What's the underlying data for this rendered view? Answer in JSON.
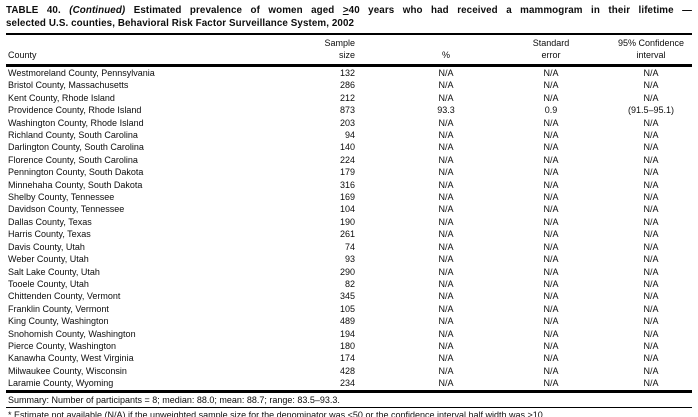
{
  "title": {
    "prefix": "TABLE 40.",
    "continued": "(Continued)",
    "before_geq": "Estimated prevalence of women aged",
    "geq": ">",
    "after_geq": "40 years who had received a mammogram in their lifetime —",
    "line2": "selected U.S. counties, Behavioral Risk Factor Surveillance System, 2002"
  },
  "table": {
    "headers": {
      "county": "County",
      "sample_size": [
        "Sample",
        "size"
      ],
      "percent": "%",
      "standard_error": [
        "Standard",
        "error"
      ],
      "confidence_interval": [
        "95% Confidence",
        "interval"
      ]
    },
    "rows": [
      {
        "county": "Westmoreland County, Pennsylvania",
        "sample": "132",
        "pct": "N/A",
        "se": "N/A",
        "ci": "N/A"
      },
      {
        "county": "Bristol County, Massachusetts",
        "sample": "286",
        "pct": "N/A",
        "se": "N/A",
        "ci": "N/A"
      },
      {
        "county": "Kent County, Rhode Island",
        "sample": "212",
        "pct": "N/A",
        "se": "N/A",
        "ci": "N/A"
      },
      {
        "county": "Providence County, Rhode Island",
        "sample": "873",
        "pct": "93.3",
        "se": "0.9",
        "ci": "(91.5–95.1)"
      },
      {
        "county": "Washington County, Rhode Island",
        "sample": "203",
        "pct": "N/A",
        "se": "N/A",
        "ci": "N/A"
      },
      {
        "county": "Richland County, South Carolina",
        "sample": "94",
        "pct": "N/A",
        "se": "N/A",
        "ci": "N/A"
      },
      {
        "county": "Darlington County, South Carolina",
        "sample": "140",
        "pct": "N/A",
        "se": "N/A",
        "ci": "N/A"
      },
      {
        "county": "Florence County, South Carolina",
        "sample": "224",
        "pct": "N/A",
        "se": "N/A",
        "ci": "N/A"
      },
      {
        "county": "Pennington County, South Dakota",
        "sample": "179",
        "pct": "N/A",
        "se": "N/A",
        "ci": "N/A"
      },
      {
        "county": "Minnehaha County, South Dakota",
        "sample": "316",
        "pct": "N/A",
        "se": "N/A",
        "ci": "N/A"
      },
      {
        "county": "Shelby County, Tennessee",
        "sample": "169",
        "pct": "N/A",
        "se": "N/A",
        "ci": "N/A"
      },
      {
        "county": "Davidson County, Tennessee",
        "sample": "104",
        "pct": "N/A",
        "se": "N/A",
        "ci": "N/A"
      },
      {
        "county": "Dallas County, Texas",
        "sample": "190",
        "pct": "N/A",
        "se": "N/A",
        "ci": "N/A"
      },
      {
        "county": "Harris County, Texas",
        "sample": "261",
        "pct": "N/A",
        "se": "N/A",
        "ci": "N/A"
      },
      {
        "county": "Davis County, Utah",
        "sample": "74",
        "pct": "N/A",
        "se": "N/A",
        "ci": "N/A"
      },
      {
        "county": "Weber County, Utah",
        "sample": "93",
        "pct": "N/A",
        "se": "N/A",
        "ci": "N/A"
      },
      {
        "county": "Salt Lake County, Utah",
        "sample": "290",
        "pct": "N/A",
        "se": "N/A",
        "ci": "N/A"
      },
      {
        "county": "Tooele County, Utah",
        "sample": "82",
        "pct": "N/A",
        "se": "N/A",
        "ci": "N/A"
      },
      {
        "county": "Chittenden County, Vermont",
        "sample": "345",
        "pct": "N/A",
        "se": "N/A",
        "ci": "N/A"
      },
      {
        "county": "Franklin County, Vermont",
        "sample": "105",
        "pct": "N/A",
        "se": "N/A",
        "ci": "N/A"
      },
      {
        "county": "King County, Washington",
        "sample": "489",
        "pct": "N/A",
        "se": "N/A",
        "ci": "N/A"
      },
      {
        "county": "Snohomish County, Washington",
        "sample": "194",
        "pct": "N/A",
        "se": "N/A",
        "ci": "N/A"
      },
      {
        "county": "Pierce County, Washington",
        "sample": "180",
        "pct": "N/A",
        "se": "N/A",
        "ci": "N/A"
      },
      {
        "county": "Kanawha County, West Virginia",
        "sample": "174",
        "pct": "N/A",
        "se": "N/A",
        "ci": "N/A"
      },
      {
        "county": "Milwaukee County, Wisconsin",
        "sample": "428",
        "pct": "N/A",
        "se": "N/A",
        "ci": "N/A"
      },
      {
        "county": "Laramie County, Wyoming",
        "sample": "234",
        "pct": "N/A",
        "se": "N/A",
        "ci": "N/A"
      }
    ]
  },
  "summary": "Summary: Number of participants = 8; median: 88.0; mean: 88.7; range: 83.5–93.3.",
  "footnote": "* Estimate not available (N/A) if the unweighted sample size for the denominator was <50 or the confidence interval half width was >10."
}
